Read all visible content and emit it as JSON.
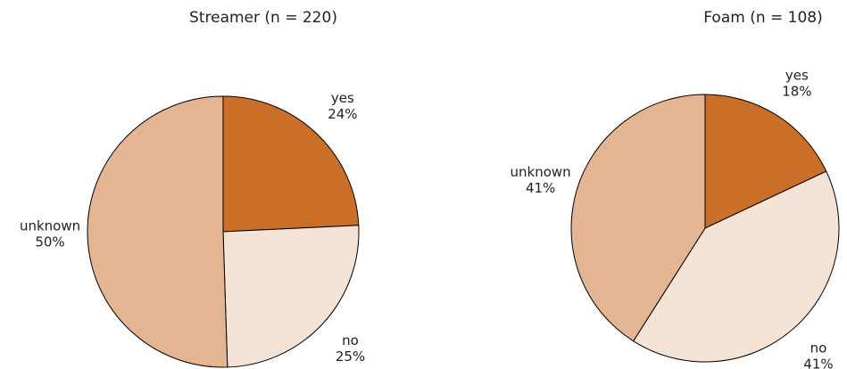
{
  "chart_data": [
    {
      "type": "pie",
      "title": "Streamer (n = 220)",
      "categories": [
        "yes",
        "no",
        "unknown"
      ],
      "values": [
        24,
        25,
        50
      ],
      "value_labels": [
        "24%",
        "25%",
        "50%"
      ],
      "colors": [
        "#c96f28",
        "#f5e3d5",
        "#e3b592"
      ]
    },
    {
      "type": "pie",
      "title": "Foam (n = 108)",
      "categories": [
        "yes",
        "no",
        "unknown"
      ],
      "values": [
        18,
        41,
        41
      ],
      "value_labels": [
        "18%",
        "41%",
        "41%"
      ],
      "colors": [
        "#c96f28",
        "#f5e3d5",
        "#e3b592"
      ]
    }
  ]
}
